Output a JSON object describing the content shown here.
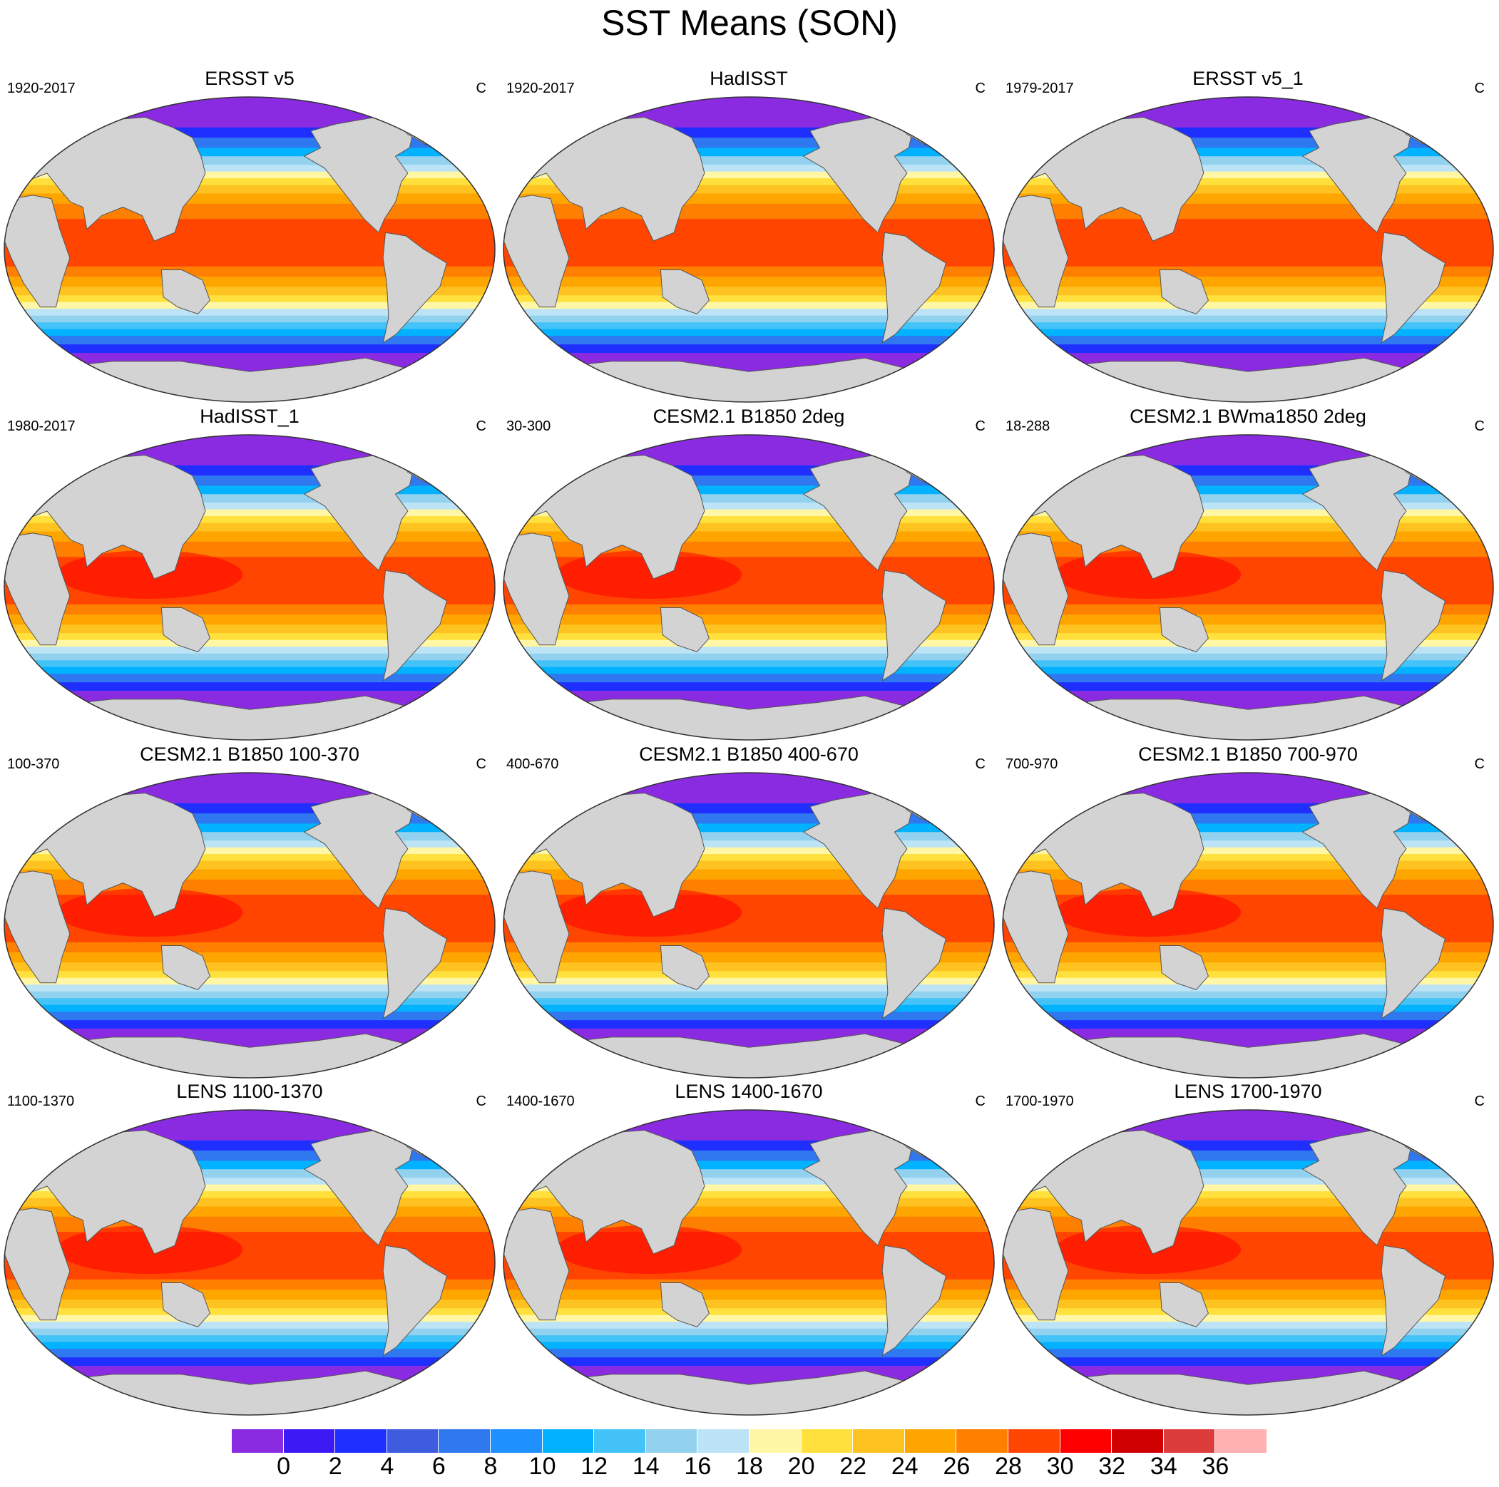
{
  "title": "SST Means (SON)",
  "units": "C",
  "colors": {
    "land": "#d3d3d3",
    "coast": "#555555"
  },
  "panels": [
    {
      "title": "ERSST v5",
      "period": "1920-2017",
      "units": "C"
    },
    {
      "title": "HadISST",
      "period": "1920-2017",
      "units": "C"
    },
    {
      "title": "ERSST v5_1",
      "period": "1979-2017",
      "units": "C"
    },
    {
      "title": "HadISST_1",
      "period": "1980-2017",
      "units": "C"
    },
    {
      "title": "CESM2.1 B1850 2deg",
      "period": "30-300",
      "units": "C"
    },
    {
      "title": "CESM2.1 BWma1850 2deg",
      "period": "18-288",
      "units": "C"
    },
    {
      "title": "CESM2.1 B1850 100-370",
      "period": "100-370",
      "units": "C"
    },
    {
      "title": "CESM2.1 B1850 400-670",
      "period": "400-670",
      "units": "C"
    },
    {
      "title": "CESM2.1 B1850 700-970",
      "period": "700-970",
      "units": "C"
    },
    {
      "title": "LENS 1100-1370",
      "period": "1100-1370",
      "units": "C"
    },
    {
      "title": "LENS 1400-1670",
      "period": "1400-1670",
      "units": "C"
    },
    {
      "title": "LENS 1700-1970",
      "period": "1700-1970",
      "units": "C"
    }
  ],
  "colorbar": {
    "colors": [
      "#8a2be2",
      "#3c19f5",
      "#1f2fff",
      "#3d5cde",
      "#2f78f0",
      "#1e90ff",
      "#00b2ff",
      "#43c3f7",
      "#93d2ee",
      "#bde3f7",
      "#fff7a6",
      "#ffe03c",
      "#ffc321",
      "#ffa500",
      "#ff7f00",
      "#ff4500",
      "#ff0000",
      "#d00000",
      "#dc3c3c",
      "#ffb0b0"
    ],
    "labels": [
      "0",
      "2",
      "4",
      "6",
      "8",
      "10",
      "12",
      "14",
      "16",
      "18",
      "20",
      "22",
      "24",
      "26",
      "28",
      "30",
      "32",
      "34",
      "36"
    ]
  }
}
